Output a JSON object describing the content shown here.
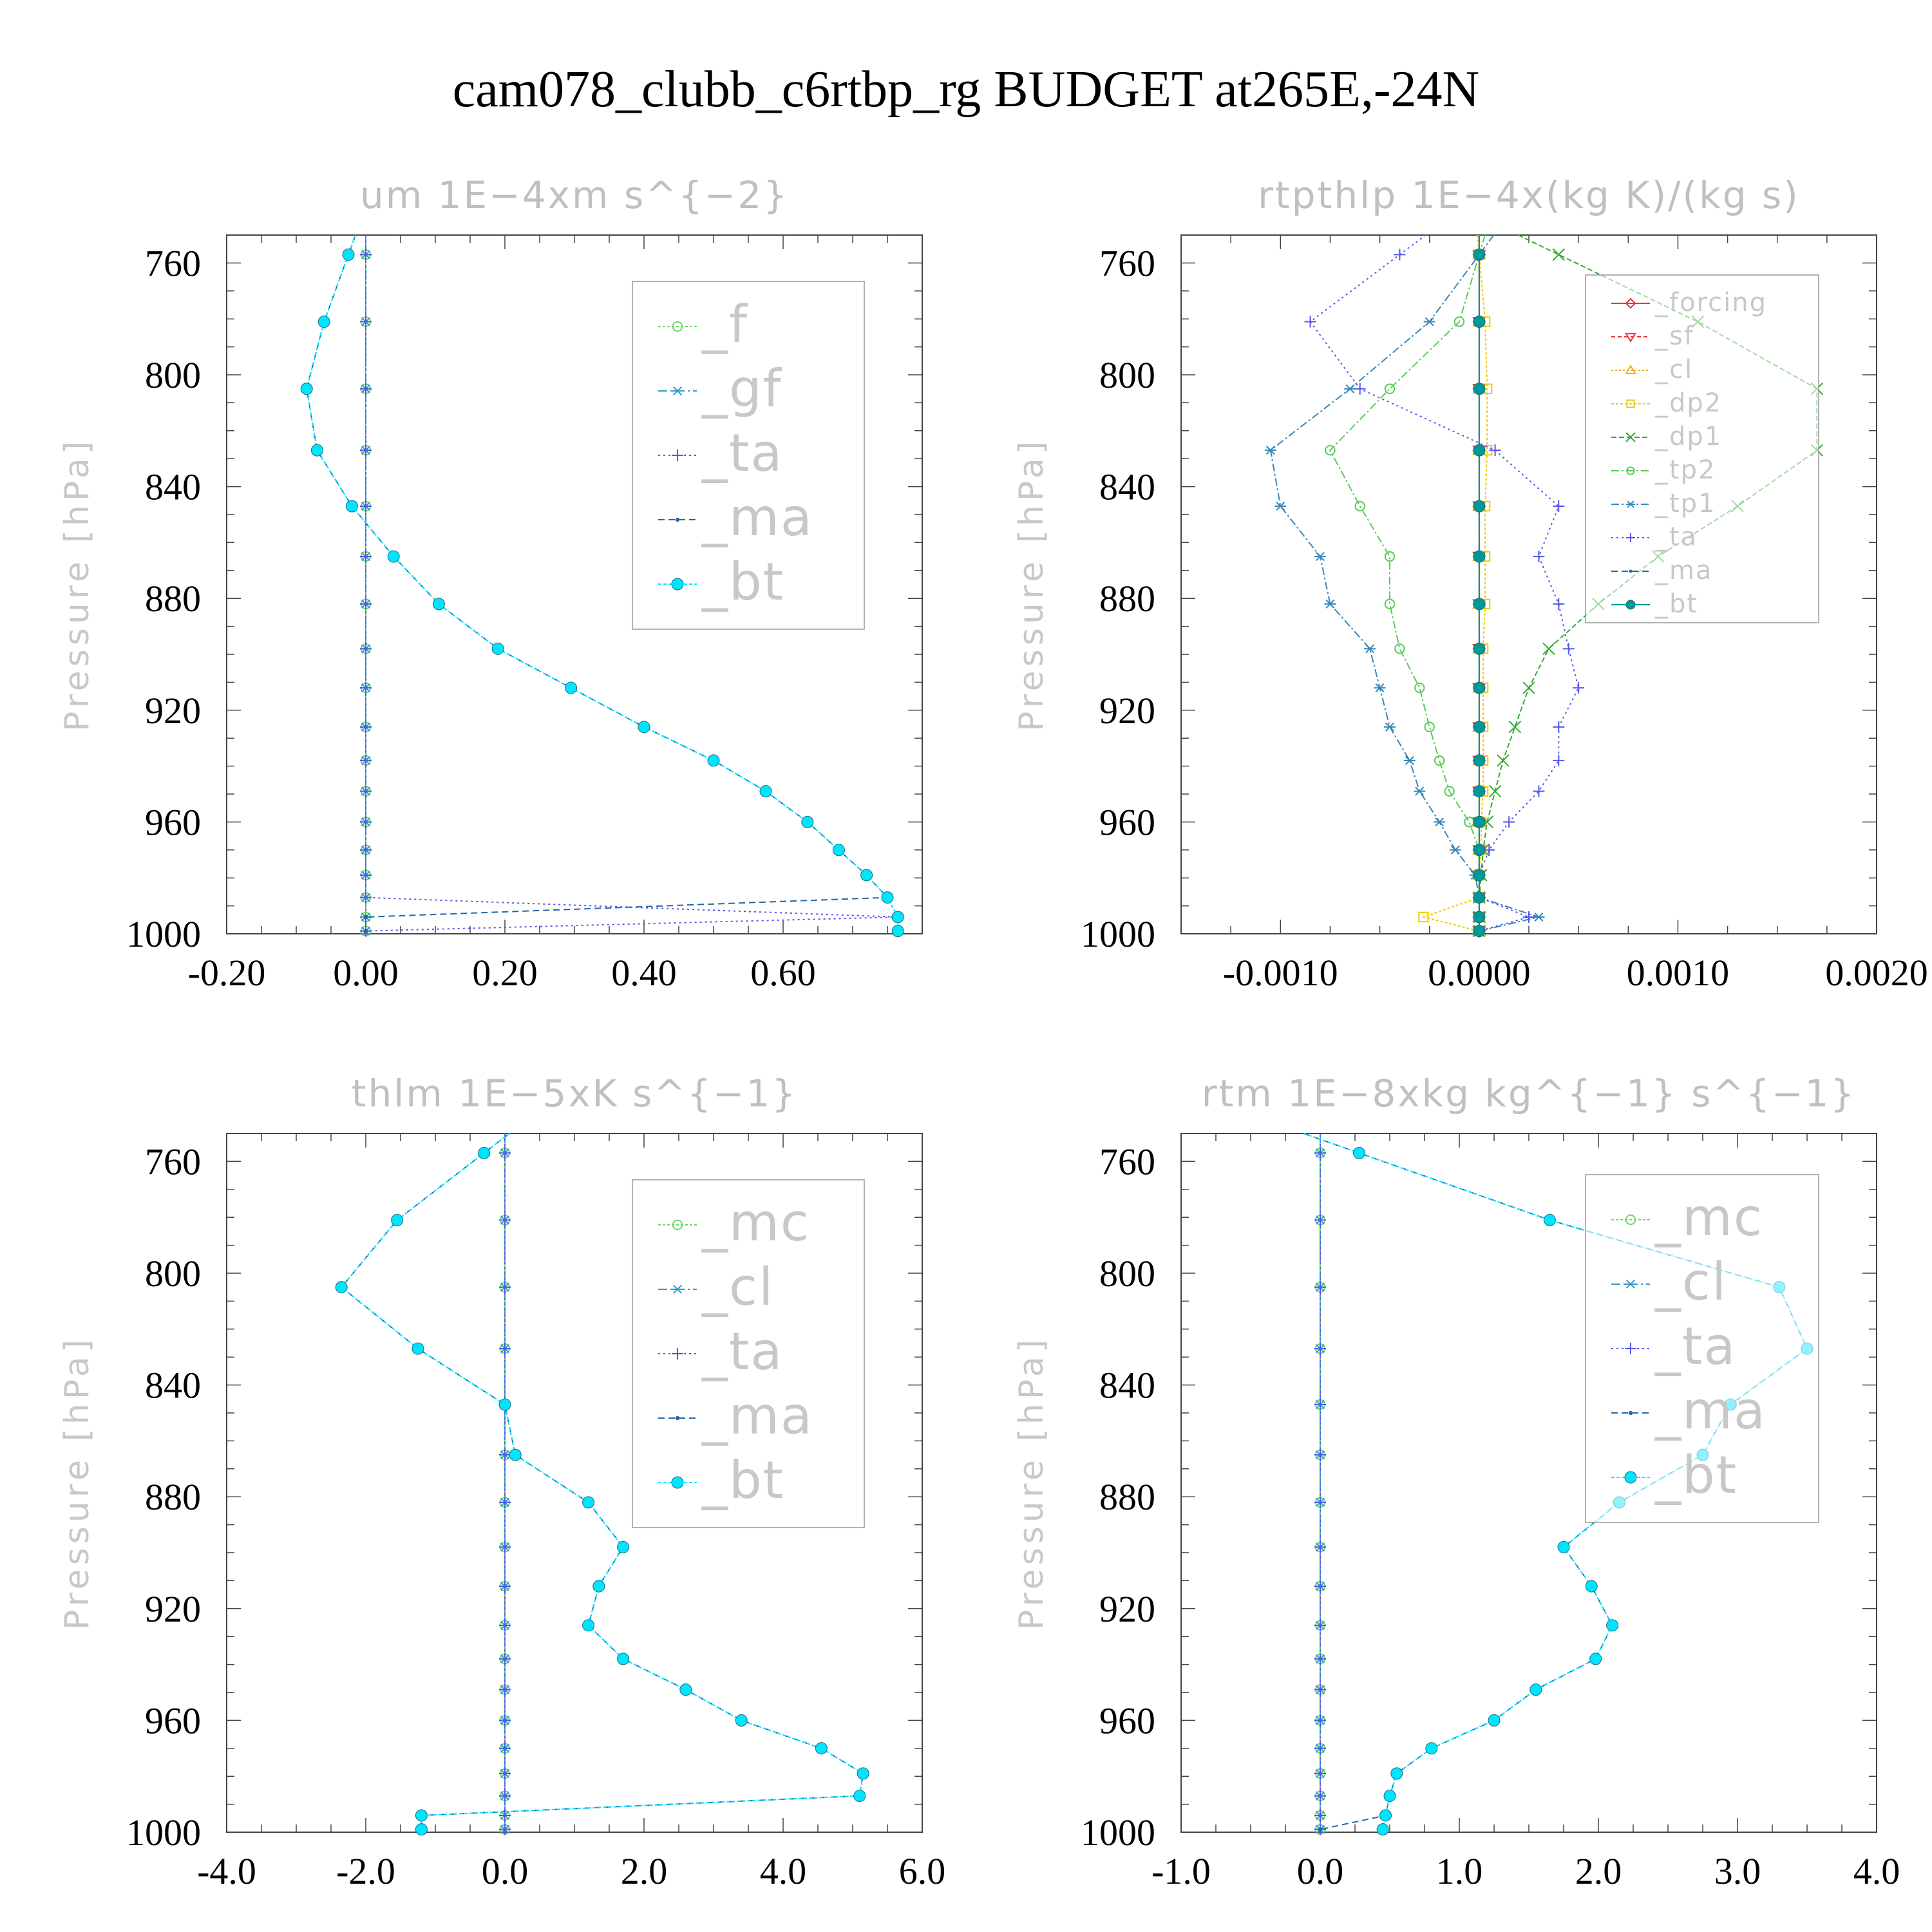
{
  "title": "cam078_clubb_c6rtbp_rg  BUDGET at265E,-24N",
  "chart_data": [
    {
      "type": "line",
      "title": "um   1E−4xm s^{−2}",
      "ylabel": "Pressure [hPa]",
      "ylim": [
        750,
        1000
      ],
      "y_inverted": true,
      "yticks": [
        "760",
        "800",
        "840",
        "880",
        "920",
        "960",
        "1000"
      ],
      "yticks_values": [
        760,
        800,
        840,
        880,
        920,
        960,
        1000
      ],
      "xlim": [
        -0.2,
        0.8
      ],
      "xticks": [
        "-0.20",
        "0.00",
        "0.20",
        "0.40",
        "0.60"
      ],
      "xticks_values": [
        -0.2,
        0.0,
        0.2,
        0.4,
        0.6
      ],
      "legend": {
        "position": "top-right",
        "size": "large"
      },
      "grid": false,
      "levels": [
        757,
        781,
        805,
        827,
        847,
        865,
        882,
        898,
        912,
        926,
        938,
        949,
        960,
        970,
        979,
        987,
        994,
        999
      ],
      "series": [
        {
          "name": "_f",
          "color": "#66dd66",
          "marker": "circle-open",
          "dash": "4,3",
          "values": [
            0,
            0,
            0,
            0,
            0,
            0,
            0,
            0,
            0,
            0,
            0,
            0,
            0,
            0,
            0,
            0,
            0,
            0
          ]
        },
        {
          "name": "_gf",
          "color": "#3399cc",
          "marker": "asterisk",
          "dash": "14,5,3,5",
          "values": [
            0,
            0,
            0,
            0,
            0,
            0,
            0,
            0,
            0,
            0,
            0,
            0,
            0,
            0,
            0,
            0,
            0,
            0
          ]
        },
        {
          "name": "_ta",
          "color": "#5555ee",
          "marker": "plus",
          "dash": "3,5",
          "values": [
            0,
            0,
            0,
            0,
            0,
            0,
            0,
            0,
            0,
            0,
            0,
            0,
            0,
            0,
            0,
            0,
            0.765,
            0
          ]
        },
        {
          "name": "_ma",
          "color": "#2266aa",
          "marker": "dot",
          "dash": "10,6",
          "values": [
            -0.025,
            -0.06,
            -0.085,
            -0.07,
            -0.02,
            0.04,
            0.105,
            0.19,
            0.295,
            0.4,
            0.5,
            0.575,
            0.635,
            0.68,
            0.72,
            0.75,
            0,
            0
          ]
        },
        {
          "name": "_bt",
          "color": "#00e5ff",
          "marker": "filled-circle",
          "dash": "5,3",
          "values": [
            -0.025,
            -0.06,
            -0.085,
            -0.07,
            -0.02,
            0.04,
            0.105,
            0.19,
            0.295,
            0.4,
            0.5,
            0.575,
            0.635,
            0.68,
            0.72,
            0.75,
            0.765,
            0.765
          ]
        }
      ]
    },
    {
      "type": "line",
      "title": "rtpthlp   1E−4x(kg K)/(kg s)",
      "ylabel": "Pressure [hPa]",
      "ylim": [
        750,
        1000
      ],
      "y_inverted": true,
      "yticks": [
        "760",
        "800",
        "840",
        "880",
        "920",
        "960",
        "1000"
      ],
      "yticks_values": [
        760,
        800,
        840,
        880,
        920,
        960,
        1000
      ],
      "xlim": [
        -0.0015,
        0.002
      ],
      "xticks": [
        "-0.0010",
        "0.0000",
        "0.0010",
        "0.0020"
      ],
      "xticks_values": [
        -0.001,
        0.0,
        0.001,
        0.002
      ],
      "legend": {
        "position": "top-right",
        "size": "small"
      },
      "grid": false,
      "levels": [
        757,
        781,
        805,
        827,
        847,
        865,
        882,
        898,
        912,
        926,
        938,
        949,
        960,
        970,
        979,
        987,
        994,
        999
      ],
      "series": [
        {
          "name": "_forcing",
          "color": "#ee3333",
          "marker": "diamond-open",
          "dash": "",
          "values": [
            0,
            0,
            0,
            0,
            0,
            0,
            0,
            0,
            0,
            0,
            0,
            0,
            0,
            0,
            0,
            0,
            0,
            0
          ]
        },
        {
          "name": "_sf",
          "color": "#ee3333",
          "marker": "triangle-down-open",
          "dash": "6,4",
          "values": [
            0,
            0,
            0,
            0,
            0,
            0,
            0,
            0,
            0,
            0,
            0,
            0,
            0,
            0,
            0,
            0,
            0,
            0
          ]
        },
        {
          "name": "_cl",
          "color": "#eeaa22",
          "marker": "triangle-up-open",
          "dash": "3,3",
          "values": [
            0,
            0,
            0,
            0,
            0,
            0,
            0,
            0,
            0,
            0,
            0,
            0,
            0,
            0,
            0,
            0,
            0,
            0
          ]
        },
        {
          "name": "_dp2",
          "color": "#eecc00",
          "marker": "square-open",
          "dash": "4,3",
          "values": [
            0,
            3e-05,
            4e-05,
            4e-05,
            3e-05,
            3e-05,
            3e-05,
            2e-05,
            2e-05,
            2e-05,
            2e-05,
            2e-05,
            1e-05,
            1e-05,
            0,
            0,
            -0.00028,
            0
          ]
        },
        {
          "name": "_dp1",
          "color": "#33aa33",
          "marker": "x",
          "dash": "8,4",
          "values": [
            0.0004,
            0.0011,
            0.0017,
            0.0017,
            0.0013,
            0.0009,
            0.0006,
            0.00035,
            0.00025,
            0.00018,
            0.00012,
            8e-05,
            4e-05,
            2e-05,
            1e-05,
            0,
            0,
            0
          ]
        },
        {
          "name": "_tp2",
          "color": "#55cc55",
          "marker": "circle-open",
          "dash": "12,4,3,4",
          "values": [
            0,
            -0.0001,
            -0.00045,
            -0.00075,
            -0.0006,
            -0.00045,
            -0.00045,
            -0.0004,
            -0.0003,
            -0.00025,
            -0.0002,
            -0.00015,
            -5e-05,
            0,
            0,
            0,
            0,
            0
          ]
        },
        {
          "name": "_tp1",
          "color": "#3388bb",
          "marker": "asterisk",
          "dash": "12,4,3,4",
          "values": [
            0,
            -0.00025,
            -0.00065,
            -0.00105,
            -0.001,
            -0.0008,
            -0.00075,
            -0.00055,
            -0.0005,
            -0.00045,
            -0.00035,
            -0.0003,
            -0.0002,
            -0.00012,
            -2e-05,
            0,
            0.0003,
            0
          ]
        },
        {
          "name": "_ta",
          "color": "#5555ee",
          "marker": "plus",
          "dash": "3,5",
          "values": [
            -0.0004,
            -0.00085,
            -0.0006,
            8e-05,
            0.0004,
            0.0003,
            0.0004,
            0.00045,
            0.0005,
            0.0004,
            0.0004,
            0.0003,
            0.00015,
            5e-05,
            0,
            0,
            0.00025,
            0
          ]
        },
        {
          "name": "_ma",
          "color": "#2266aa",
          "marker": "dot",
          "dash": "10,6",
          "values": [
            0,
            0,
            0,
            0,
            0,
            0,
            0,
            0,
            0,
            0,
            0,
            0,
            0,
            0,
            0,
            0,
            0,
            0
          ]
        },
        {
          "name": "_bt",
          "color": "#009999",
          "marker": "filled-circle",
          "dash": "",
          "values": [
            0,
            0,
            0,
            0,
            0,
            0,
            0,
            0,
            0,
            0,
            0,
            0,
            0,
            0,
            0,
            0,
            0,
            0
          ]
        }
      ]
    },
    {
      "type": "line",
      "title": "thlm   1E−5xK s^{−1}",
      "ylabel": "Pressure [hPa]",
      "ylim": [
        750,
        1000
      ],
      "y_inverted": true,
      "yticks": [
        "760",
        "800",
        "840",
        "880",
        "920",
        "960",
        "1000"
      ],
      "yticks_values": [
        760,
        800,
        840,
        880,
        920,
        960,
        1000
      ],
      "xlim": [
        -4.0,
        6.0
      ],
      "xticks": [
        "-4.0",
        "-2.0",
        "0.0",
        "2.0",
        "4.0",
        "6.0"
      ],
      "xticks_values": [
        -4,
        -2,
        0,
        2,
        4,
        6
      ],
      "legend": {
        "position": "top-right",
        "size": "large"
      },
      "grid": false,
      "levels": [
        757,
        781,
        805,
        827,
        847,
        865,
        882,
        898,
        912,
        926,
        938,
        949,
        960,
        970,
        979,
        987,
        994,
        999
      ],
      "series": [
        {
          "name": "_mc",
          "color": "#66dd66",
          "marker": "circle-open",
          "dash": "4,3",
          "values": [
            0,
            0,
            0,
            0,
            0,
            0,
            0,
            0,
            0,
            0,
            0,
            0,
            0,
            0,
            0,
            0,
            0,
            0
          ]
        },
        {
          "name": "_cl",
          "color": "#3399cc",
          "marker": "asterisk",
          "dash": "14,5,3,5",
          "values": [
            0,
            0,
            0,
            0,
            0,
            0,
            0,
            0,
            0,
            0,
            0,
            0,
            0,
            0,
            0,
            0,
            0,
            0
          ]
        },
        {
          "name": "_ta",
          "color": "#5555ee",
          "marker": "plus",
          "dash": "3,5",
          "values": [
            0,
            0,
            0,
            0,
            0,
            0,
            0,
            0,
            0,
            0,
            0,
            0,
            0,
            0,
            0,
            0,
            0,
            0
          ]
        },
        {
          "name": "_ma",
          "color": "#2266aa",
          "marker": "dot",
          "dash": "10,6",
          "values": [
            -0.3,
            -1.55,
            -2.35,
            -1.25,
            0,
            0.15,
            1.2,
            1.7,
            1.35,
            1.2,
            1.7,
            2.6,
            3.4,
            4.55,
            5.15,
            5.1,
            -1.2,
            -1.2
          ]
        },
        {
          "name": "_bt",
          "color": "#00e5ff",
          "marker": "filled-circle",
          "dash": "5,3",
          "values": [
            -0.3,
            -1.55,
            -2.35,
            -1.25,
            0,
            0.15,
            1.2,
            1.7,
            1.35,
            1.2,
            1.7,
            2.6,
            3.4,
            4.55,
            5.15,
            5.1,
            -1.2,
            -1.2
          ]
        }
      ]
    },
    {
      "type": "line",
      "title": "rtm   1E−8xkg kg^{−1} s^{−1}",
      "ylabel": "Pressure [hPa]",
      "ylim": [
        750,
        1000
      ],
      "y_inverted": true,
      "yticks": [
        "760",
        "800",
        "840",
        "880",
        "920",
        "960",
        "1000"
      ],
      "yticks_values": [
        760,
        800,
        840,
        880,
        920,
        960,
        1000
      ],
      "xlim": [
        -1.0,
        4.0
      ],
      "xticks": [
        "-1.0",
        "0.0",
        "1.0",
        "2.0",
        "3.0",
        "4.0"
      ],
      "xticks_values": [
        -1,
        0,
        1,
        2,
        3,
        4
      ],
      "legend": {
        "position": "top-right",
        "size": "large"
      },
      "grid": false,
      "levels": [
        757,
        781,
        805,
        827,
        847,
        865,
        882,
        898,
        912,
        926,
        938,
        949,
        960,
        970,
        979,
        987,
        994,
        999
      ],
      "series": [
        {
          "name": "_mc",
          "color": "#66dd66",
          "marker": "circle-open",
          "dash": "4,3",
          "values": [
            0,
            0,
            0,
            0,
            0,
            0,
            0,
            0,
            0,
            0,
            0,
            0,
            0,
            0,
            0,
            0,
            0,
            0
          ]
        },
        {
          "name": "_cl",
          "color": "#3399cc",
          "marker": "asterisk",
          "dash": "14,5,3,5",
          "values": [
            0,
            0,
            0,
            0,
            0,
            0,
            0,
            0,
            0,
            0,
            0,
            0,
            0,
            0,
            0,
            0,
            0,
            0
          ]
        },
        {
          "name": "_ta",
          "color": "#5555ee",
          "marker": "plus",
          "dash": "3,5",
          "values": [
            0,
            0,
            0,
            0,
            0,
            0,
            0,
            0,
            0,
            0,
            0,
            0,
            0,
            0,
            0,
            0,
            0,
            0
          ]
        },
        {
          "name": "_ma",
          "color": "#2266aa",
          "marker": "dot",
          "dash": "10,6",
          "values": [
            0.28,
            1.65,
            3.3,
            3.5,
            2.95,
            2.75,
            2.15,
            1.75,
            1.95,
            2.1,
            1.98,
            1.55,
            1.25,
            0.8,
            0.55,
            0.5,
            0.47,
            0
          ]
        },
        {
          "name": "_bt",
          "color": "#00e5ff",
          "marker": "filled-circle",
          "dash": "5,3",
          "values": [
            0.28,
            1.65,
            3.3,
            3.5,
            2.95,
            2.75,
            2.15,
            1.75,
            1.95,
            2.1,
            1.98,
            1.55,
            1.25,
            0.8,
            0.55,
            0.5,
            0.47,
            0.45
          ]
        }
      ]
    }
  ]
}
